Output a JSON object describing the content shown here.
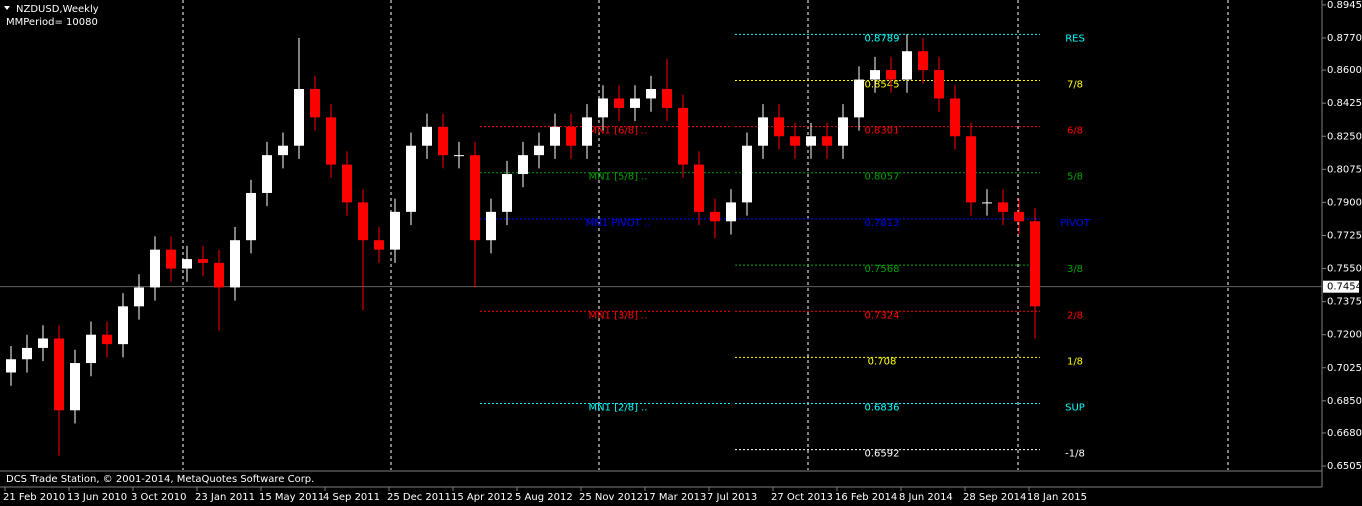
{
  "chart_data": {
    "type": "candlestick",
    "title": "NZDUSD,Weekly",
    "subtitle": "MMPeriod= 10080",
    "footer": "DCS Trade Station, © 2001-2014, MetaQuotes Software Corp.",
    "categories": [
      "21 Feb 2010",
      null,
      null,
      null,
      "13 Jun 2010",
      null,
      null,
      null,
      "3 Oct 2010",
      null,
      null,
      null,
      "23 Jan 2011",
      null,
      null,
      null,
      "15 May 2011",
      null,
      null,
      null,
      "4 Sep 2011",
      null,
      null,
      null,
      "25 Dec 2011",
      null,
      null,
      null,
      "15 Apr 2012",
      null,
      null,
      null,
      "5 Aug 2012",
      null,
      null,
      null,
      "25 Nov 2012",
      null,
      null,
      null,
      "17 Mar 2013",
      null,
      null,
      null,
      "7 Jul 2013",
      null,
      null,
      null,
      "27 Oct 2013",
      null,
      null,
      null,
      "16 Feb 2014",
      null,
      null,
      null,
      "8 Jun 2014",
      null,
      null,
      null,
      "28 Sep 2014",
      null,
      null,
      null,
      "18 Jan 2015"
    ],
    "open": [
      0.7,
      0.707,
      0.713,
      0.718,
      0.68,
      0.705,
      0.72,
      0.715,
      0.735,
      0.745,
      0.765,
      0.755,
      0.76,
      0.758,
      0.745,
      0.77,
      0.795,
      0.815,
      0.82,
      0.85,
      0.835,
      0.81,
      0.79,
      0.77,
      0.765,
      0.785,
      0.82,
      0.83,
      0.815,
      0.815,
      0.77,
      0.785,
      0.805,
      0.815,
      0.82,
      0.83,
      0.82,
      0.835,
      0.845,
      0.84,
      0.845,
      0.85,
      0.84,
      0.81,
      0.785,
      0.78,
      0.79,
      0.82,
      0.835,
      0.825,
      0.82,
      0.825,
      0.82,
      0.835,
      0.855,
      0.86,
      0.855,
      0.87,
      0.86,
      0.845,
      0.825,
      0.79,
      0.79,
      0.785,
      0.78
    ],
    "high": [
      0.714,
      0.72,
      0.725,
      0.725,
      0.712,
      0.727,
      0.727,
      0.742,
      0.752,
      0.772,
      0.772,
      0.767,
      0.767,
      0.765,
      0.777,
      0.802,
      0.822,
      0.827,
      0.877,
      0.857,
      0.842,
      0.817,
      0.797,
      0.777,
      0.792,
      0.827,
      0.837,
      0.837,
      0.822,
      0.822,
      0.792,
      0.812,
      0.822,
      0.827,
      0.837,
      0.837,
      0.842,
      0.852,
      0.852,
      0.852,
      0.857,
      0.866,
      0.847,
      0.817,
      0.792,
      0.797,
      0.827,
      0.842,
      0.842,
      0.832,
      0.832,
      0.832,
      0.842,
      0.862,
      0.867,
      0.867,
      0.879,
      0.877,
      0.867,
      0.852,
      0.832,
      0.797,
      0.797,
      0.792,
      0.787
    ],
    "low": [
      0.693,
      0.7,
      0.706,
      0.656,
      0.673,
      0.698,
      0.708,
      0.708,
      0.728,
      0.738,
      0.748,
      0.748,
      0.751,
      0.722,
      0.738,
      0.763,
      0.788,
      0.808,
      0.813,
      0.828,
      0.803,
      0.783,
      0.733,
      0.758,
      0.758,
      0.778,
      0.813,
      0.808,
      0.808,
      0.745,
      0.763,
      0.778,
      0.798,
      0.808,
      0.813,
      0.813,
      0.813,
      0.828,
      0.833,
      0.833,
      0.838,
      0.833,
      0.803,
      0.778,
      0.771,
      0.773,
      0.783,
      0.813,
      0.818,
      0.813,
      0.813,
      0.813,
      0.813,
      0.828,
      0.848,
      0.848,
      0.848,
      0.853,
      0.838,
      0.818,
      0.783,
      0.783,
      0.778,
      0.773,
      0.718
    ],
    "close": [
      0.707,
      0.713,
      0.718,
      0.68,
      0.705,
      0.72,
      0.715,
      0.735,
      0.745,
      0.765,
      0.755,
      0.76,
      0.758,
      0.745,
      0.77,
      0.795,
      0.815,
      0.82,
      0.85,
      0.835,
      0.81,
      0.79,
      0.77,
      0.765,
      0.785,
      0.82,
      0.83,
      0.815,
      0.815,
      0.77,
      0.785,
      0.805,
      0.815,
      0.82,
      0.83,
      0.82,
      0.835,
      0.845,
      0.84,
      0.845,
      0.85,
      0.84,
      0.81,
      0.785,
      0.78,
      0.79,
      0.82,
      0.835,
      0.825,
      0.82,
      0.825,
      0.82,
      0.835,
      0.855,
      0.86,
      0.855,
      0.87,
      0.86,
      0.845,
      0.825,
      0.79,
      0.79,
      0.785,
      0.78,
      0.735
    ],
    "up_color": "#ffffff",
    "down_color": "#ff0000",
    "ylim": [
      0.6484,
      0.8971
    ],
    "yticks": [
      0.8945,
      {
        "value": 0.877,
        "label": "0.8770"
      },
      {
        "value": 0.86,
        "label": "0.8600"
      },
      0.8425,
      {
        "value": 0.825,
        "label": "0.8250"
      },
      0.8075,
      {
        "value": 0.79,
        "label": "0.7900"
      },
      0.7725,
      {
        "value": 0.755,
        "label": "0.7550"
      },
      0.7375,
      {
        "value": 0.72,
        "label": "0.7200"
      },
      0.7025,
      {
        "value": 0.685,
        "label": "0.6850"
      },
      {
        "value": 0.668,
        "label": "0.6680"
      },
      0.6505
    ],
    "last_price": 0.7454,
    "levels": [
      {
        "value": 0.8789,
        "tag": "RES",
        "color": "#00ffff"
      },
      {
        "value": 0.8545,
        "tag": "7/8",
        "color": "#ffff00"
      },
      {
        "value": 0.8301,
        "tag": "6/8",
        "color": "#ff0000",
        "mn1": "MN1 [6/8] .."
      },
      {
        "value": 0.8057,
        "tag": "5/8",
        "color": "#00a000",
        "mn1": "MN1 [5/8] .."
      },
      {
        "value": 0.7813,
        "tag": "PIVOT",
        "color": "#0000ff",
        "mn1": "MN1 PIVOT .."
      },
      {
        "value": 0.7568,
        "tag": "3/8",
        "color": "#00a000"
      },
      {
        "value": 0.7324,
        "tag": "2/8",
        "color": "#ff0000",
        "mn1": "MN1 [3/8] .."
      },
      {
        "value": 0.708,
        "tag": "1/8",
        "color": "#ffff00"
      },
      {
        "value": 0.6836,
        "tag": "SUP",
        "color": "#00ffff",
        "mn1": "MN1 [2/8] .."
      },
      {
        "value": 0.6592,
        "tag": "-1/8",
        "color": "#ffffff"
      }
    ]
  }
}
